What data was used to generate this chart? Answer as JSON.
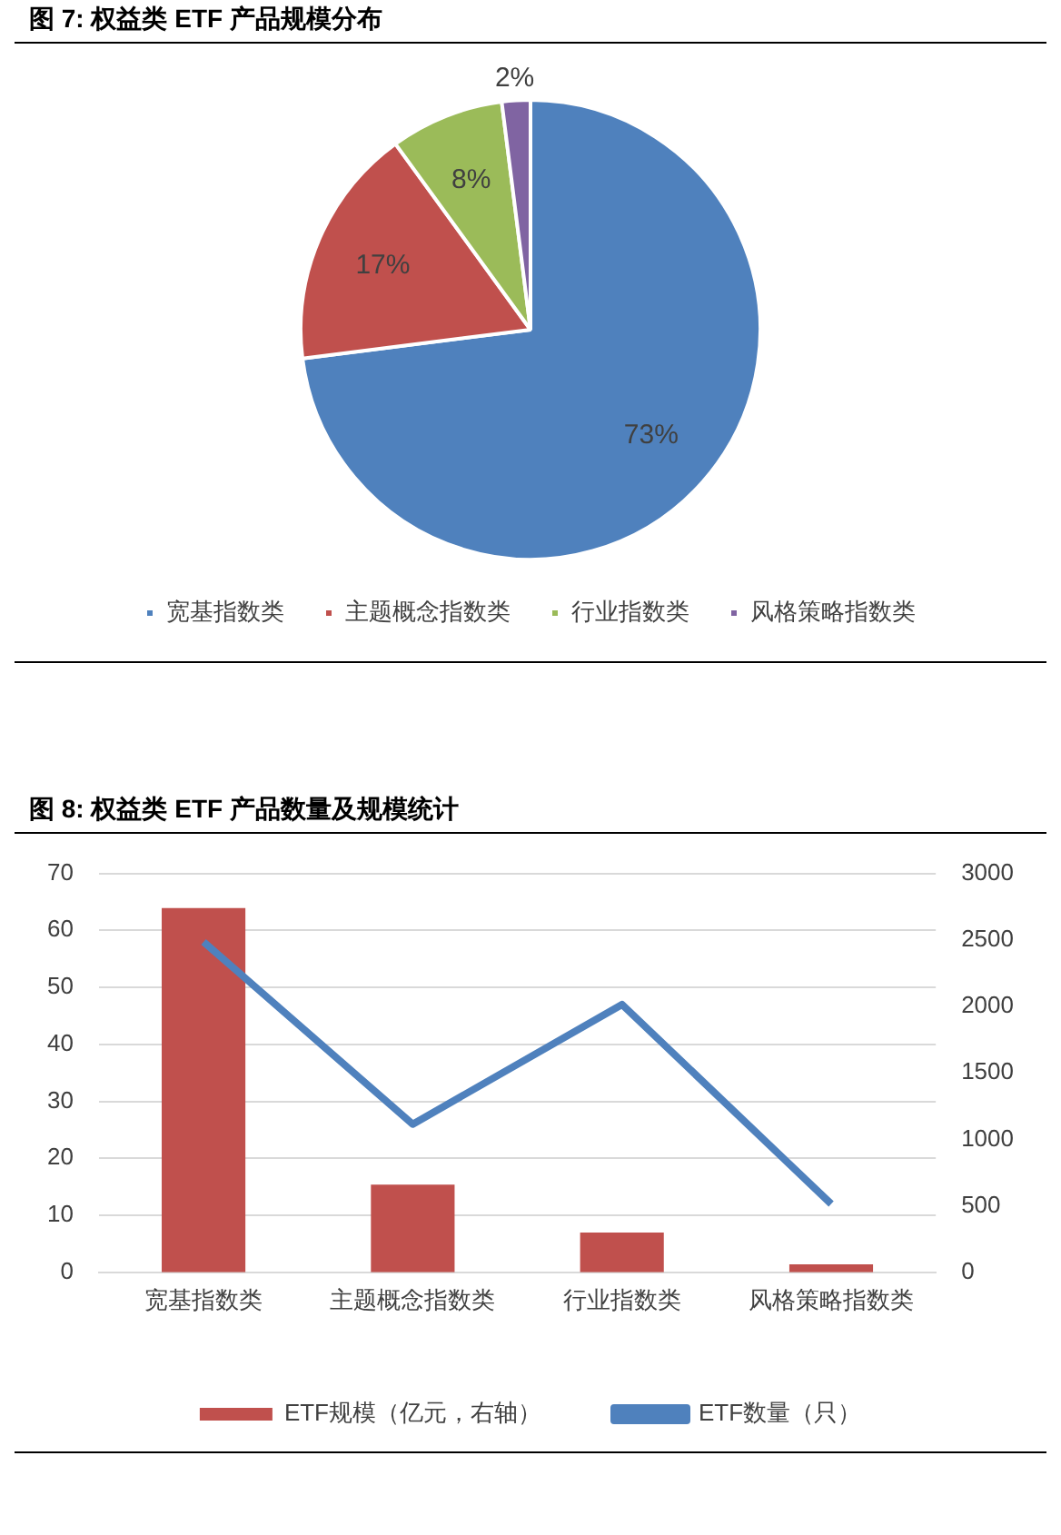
{
  "chart_data": [
    {
      "type": "pie",
      "title": "图 7: 权益类 ETF 产品规模分布",
      "categories": [
        "宽基指数类",
        "主题概念指数类",
        "行业指数类",
        "风格策略指数类"
      ],
      "values": [
        73,
        17,
        8,
        2
      ],
      "colors": [
        "#4f81bd",
        "#c0504d",
        "#9bbb59",
        "#8064a2"
      ],
      "value_labels": [
        "73%",
        "17%",
        "8%",
        "2%"
      ],
      "legend": "bottom"
    },
    {
      "type": "bar",
      "title": "图 8: 权益类 ETF 产品数量及规模统计",
      "categories": [
        "宽基指数类",
        "主题概念指数类",
        "行业指数类",
        "风格策略指数类"
      ],
      "series": [
        {
          "name": "ETF规模（亿元，右轴）",
          "type": "bar",
          "axis": "y2",
          "color": "#c0504d",
          "values": [
            2740,
            660,
            300,
            60
          ]
        },
        {
          "name": "ETF数量（只）",
          "type": "line",
          "color": "#4f81bd",
          "values": [
            58,
            26,
            47,
            12
          ]
        }
      ],
      "ylim": [
        0,
        70
      ],
      "yticks": [
        0,
        10,
        20,
        30,
        40,
        50,
        60,
        70
      ],
      "y2lim": [
        0,
        3000
      ],
      "y2ticks": [
        0,
        500,
        1000,
        1500,
        2000,
        2500,
        3000
      ],
      "grid": "y",
      "legend": "bottom",
      "marker": "none"
    }
  ]
}
